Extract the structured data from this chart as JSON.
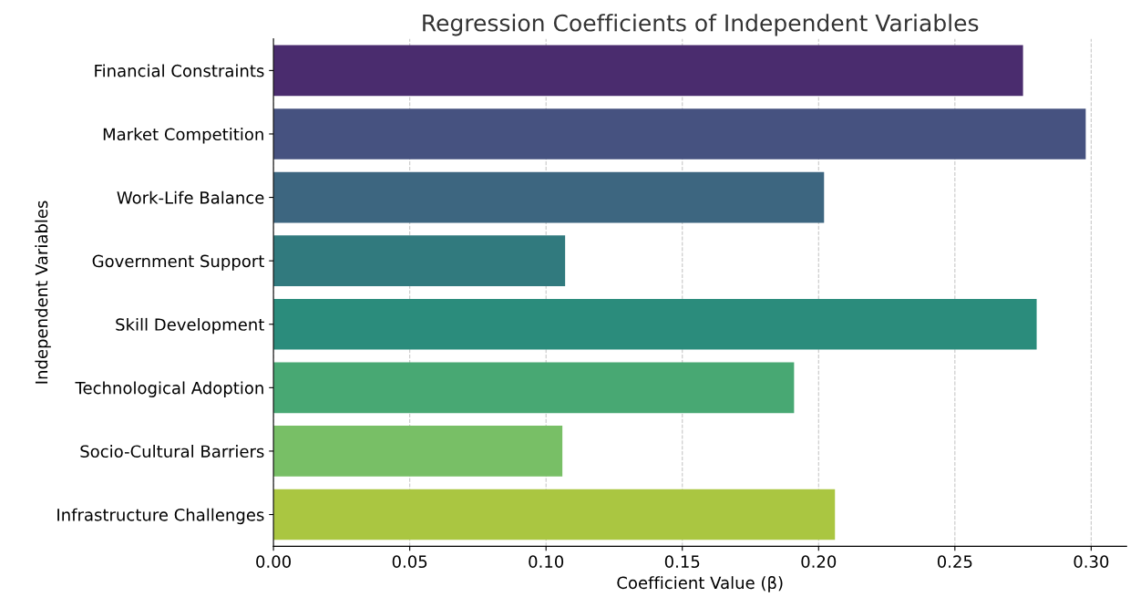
{
  "chart_data": {
    "type": "bar",
    "orientation": "horizontal",
    "title": "Regression Coefficients of Independent Variables",
    "xlabel": "Coefficient Value (β)",
    "ylabel": "Independent Variables",
    "categories": [
      "Financial Constraints",
      "Market Competition",
      "Work-Life Balance",
      "Government Support",
      "Skill Development",
      "Technological Adoption",
      "Socio-Cultural Barriers",
      "Infrastructure Challenges"
    ],
    "values": [
      0.275,
      0.298,
      0.202,
      0.107,
      0.28,
      0.191,
      0.106,
      0.206
    ],
    "colors": [
      "#4a2c6e",
      "#465280",
      "#3d6680",
      "#317a7e",
      "#2b8c7c",
      "#48a873",
      "#78bf66",
      "#aac641"
    ],
    "xlim": [
      0,
      0.313
    ],
    "xticks": [
      {
        "value": 0,
        "label": "0.00"
      },
      {
        "value": 0.05,
        "label": "0.05"
      },
      {
        "value": 0.1,
        "label": "0.10"
      },
      {
        "value": 0.15,
        "label": "0.15"
      },
      {
        "value": 0.2,
        "label": "0.20"
      },
      {
        "value": 0.25,
        "label": "0.25"
      },
      {
        "value": 0.3,
        "label": "0.30"
      }
    ],
    "grid": "x",
    "line_style": "dashed"
  }
}
